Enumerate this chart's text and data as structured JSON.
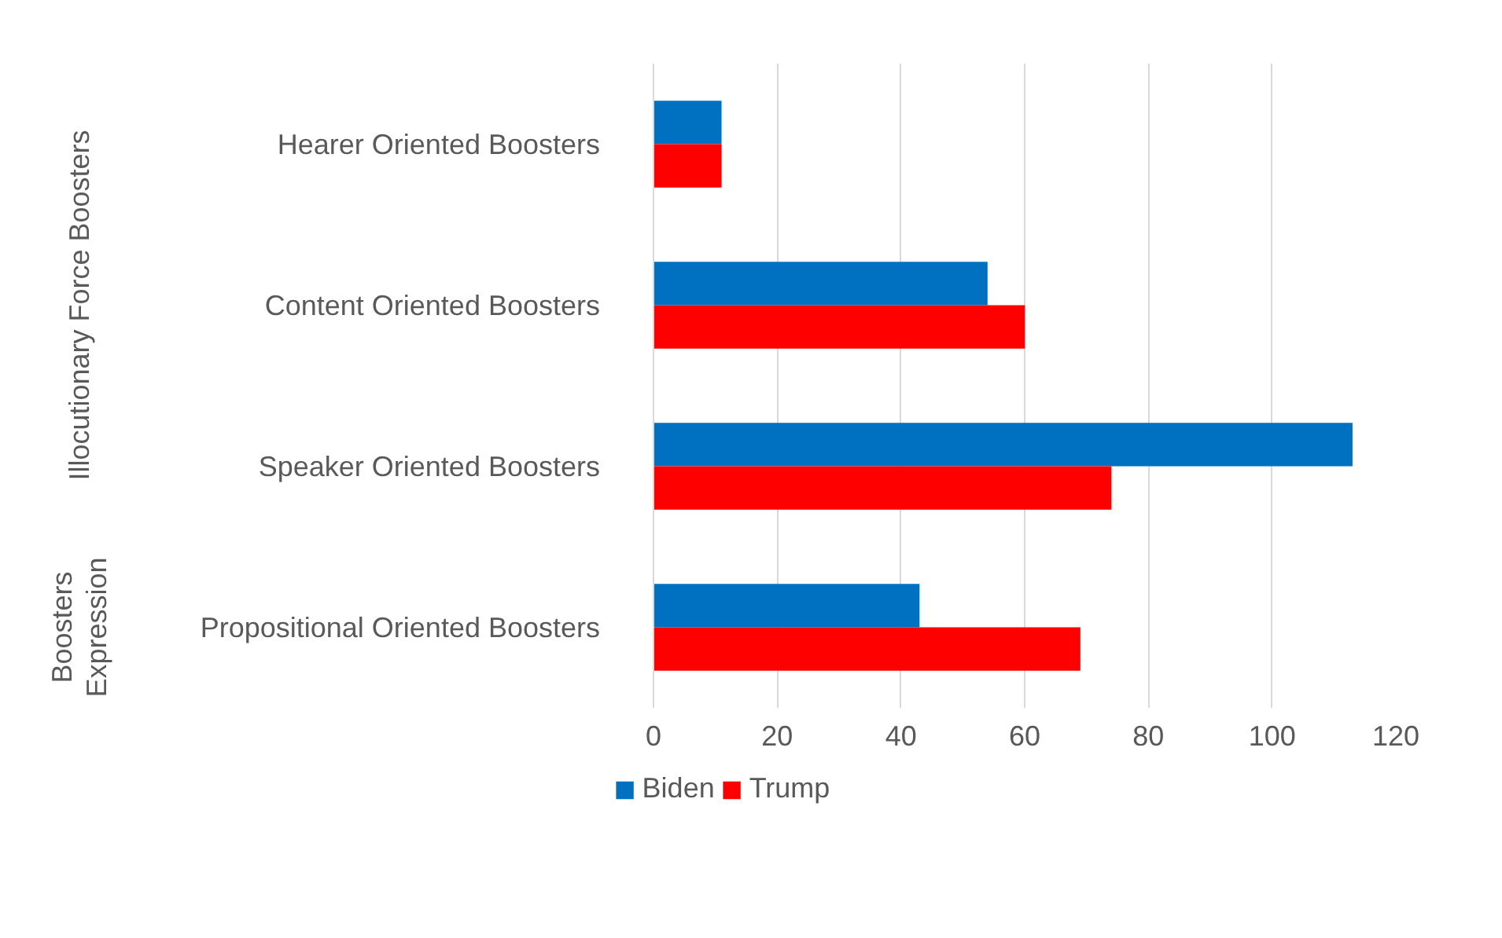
{
  "chart_data": {
    "type": "bar",
    "orientation": "horizontal",
    "categories": [
      "Hearer Oriented Boosters",
      "Content Oriented Boosters",
      "Speaker Oriented Boosters",
      "Propositional Oriented Boosters"
    ],
    "series": [
      {
        "name": "Biden",
        "color": "#0070c0",
        "values": [
          11,
          54,
          113,
          43
        ]
      },
      {
        "name": "Trump",
        "color": "#ff0000",
        "values": [
          11,
          60,
          74,
          69
        ]
      }
    ],
    "annotations": [
      "Illocutionary Force Boosters",
      "Boosters Expression"
    ],
    "xlim": [
      0,
      120
    ],
    "xticks": [
      0,
      20,
      40,
      60,
      80,
      100,
      120
    ],
    "grid": "x",
    "legend": "bottom"
  }
}
